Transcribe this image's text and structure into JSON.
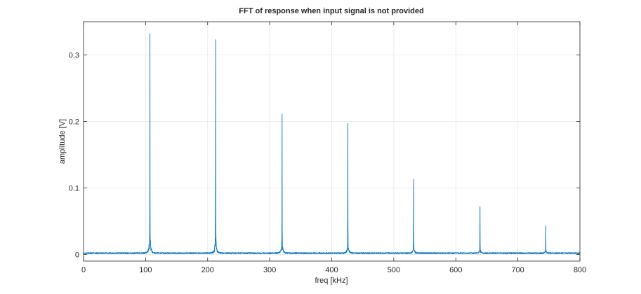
{
  "chart_data": {
    "type": "line",
    "title": "FFT of response when input signal is not provided",
    "xlabel": "freq [kHz]",
    "ylabel": "amplitude [V]",
    "xlim": [
      0,
      800
    ],
    "ylim": [
      -0.01,
      0.35
    ],
    "xticks": [
      0,
      100,
      200,
      300,
      400,
      500,
      600,
      700,
      800
    ],
    "yticks": [
      0,
      0.1,
      0.2,
      0.3
    ],
    "xtick_labels": [
      "0",
      "100",
      "200",
      "300",
      "400",
      "500",
      "600",
      "700",
      "800"
    ],
    "ytick_labels": [
      "0",
      "0.1",
      "0.2",
      "0.3"
    ],
    "grid": true,
    "series": [
      {
        "color": "#0072BD",
        "baseline": 0.002,
        "peaks": [
          {
            "x": 107,
            "y": 0.332
          },
          {
            "x": 213,
            "y": 0.323
          },
          {
            "x": 320,
            "y": 0.211
          },
          {
            "x": 426,
            "y": 0.197
          },
          {
            "x": 532,
            "y": 0.113
          },
          {
            "x": 639,
            "y": 0.072
          },
          {
            "x": 745,
            "y": 0.043
          }
        ]
      }
    ]
  }
}
